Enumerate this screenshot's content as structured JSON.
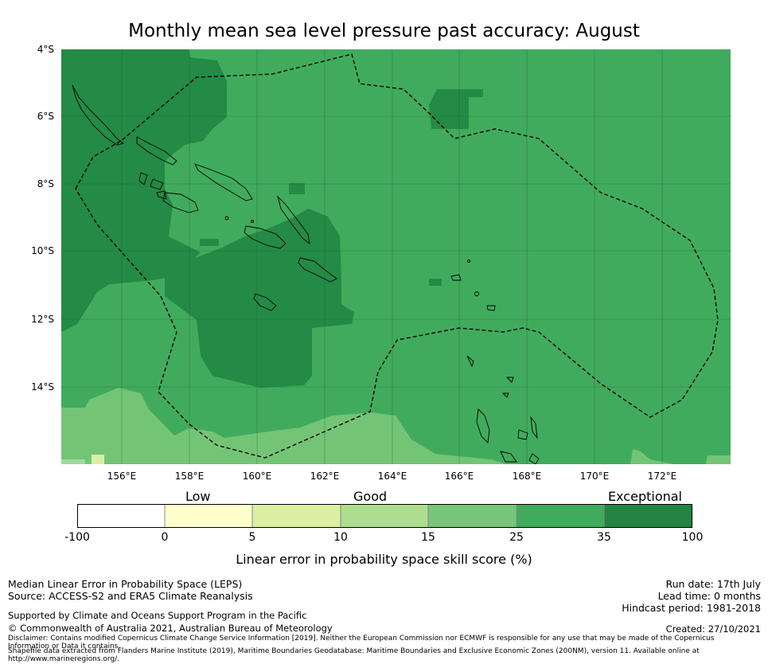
{
  "title": "Monthly mean sea level pressure past accuracy: August",
  "map": {
    "lat_labels": [
      "4°S",
      "6°S",
      "8°S",
      "10°S",
      "12°S",
      "14°S"
    ],
    "lon_labels": [
      "156°E",
      "158°E",
      "160°E",
      "162°E",
      "164°E",
      "166°E",
      "168°E",
      "170°E",
      "172°E"
    ],
    "colors": {
      "exceptional_dark": "#238b45",
      "band_25_35": "#41ab5d",
      "band_15_25": "#74c476",
      "band_10_15": "#a1d99b",
      "band_5_10": "#d9f0a3",
      "grid": "#1f5a2e"
    }
  },
  "colorbar": {
    "category_labels": [
      "Low",
      "Good",
      "Exceptional"
    ],
    "ticks": [
      "-100",
      "0",
      "5",
      "10",
      "15",
      "25",
      "35",
      "100"
    ],
    "colors": [
      "#ffffff",
      "#ffffcc",
      "#d9f0a3",
      "#addd8e",
      "#78c679",
      "#41ab5d",
      "#238443"
    ],
    "title": "Linear error in probability space skill score (%)"
  },
  "footer": {
    "line1": "Median Linear Error in Probability Space (LEPS)",
    "line2": "Source: ACCESS-S2 and ERA5 Climate Reanalysis",
    "line3": "Supported by Climate and Oceans Support Program in the Pacific",
    "line4": "© Commonwealth of Australia 2021, Australian Bureau of Meteorology",
    "disclaimer1": "Disclaimer: Contains modified Copernicus Climate Change Service Information [2019]. Neither the European Commission nor ECMWF is responsible for any use that may be made of the Copernicus Information or Data it contains.",
    "disclaimer2": "Shapefile data extracted from Flanders Marine Institute (2019), Maritime Boundaries Geodatabase: Maritime Boundaries and Exclusive Economic Zones (200NM), version 11. Available online at http://www.marineregions.org/.",
    "run_date": "Run date: 17th July",
    "lead_time": "Lead time: 0 months",
    "hindcast": "Hindcast period: 1981-2018",
    "created": "Created: 27/10/2021"
  }
}
